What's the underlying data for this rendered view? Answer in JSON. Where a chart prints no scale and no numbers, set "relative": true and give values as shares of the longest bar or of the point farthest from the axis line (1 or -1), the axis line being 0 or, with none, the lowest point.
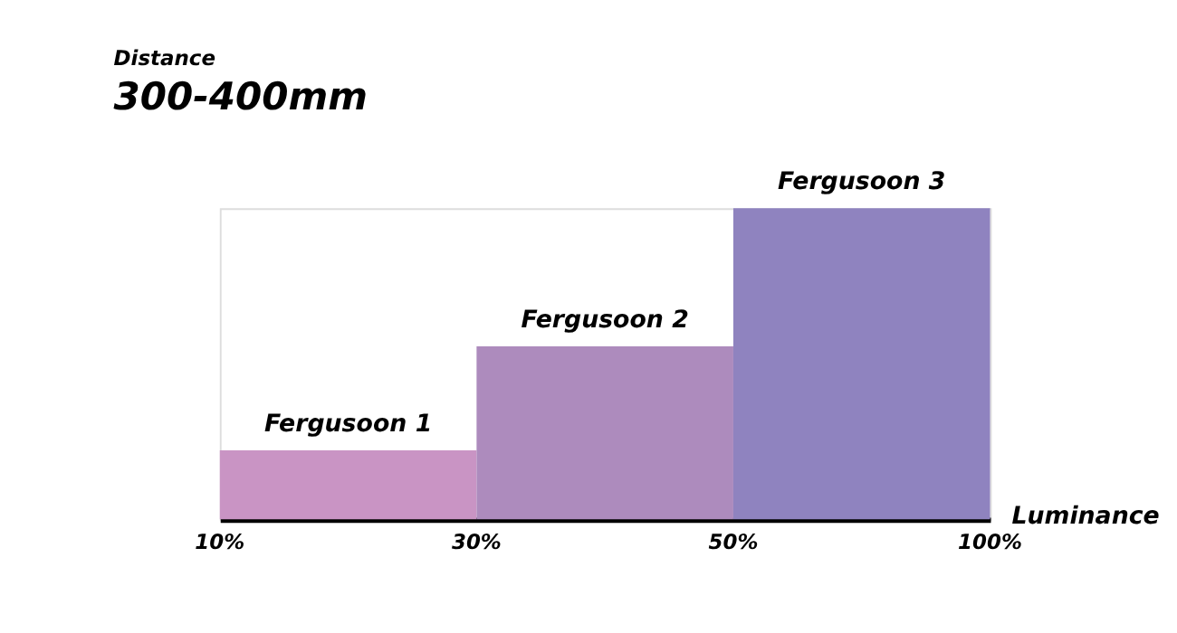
{
  "chart_data": {
    "type": "bar",
    "title": "Distance",
    "subtitle": "300-400mm",
    "xlabel": "Luminance",
    "relative": true,
    "categories": [
      "Fergusoon 1",
      "Fergusoon 2",
      "Fergusoon 3"
    ],
    "values": [
      0.222,
      0.556,
      1
    ],
    "colors": [
      "#c994c4",
      "#ad8bbd",
      "#8f83bf"
    ],
    "annotations": [
      "10%",
      "30%",
      "50%",
      "100%"
    ],
    "line_style": "solid"
  }
}
